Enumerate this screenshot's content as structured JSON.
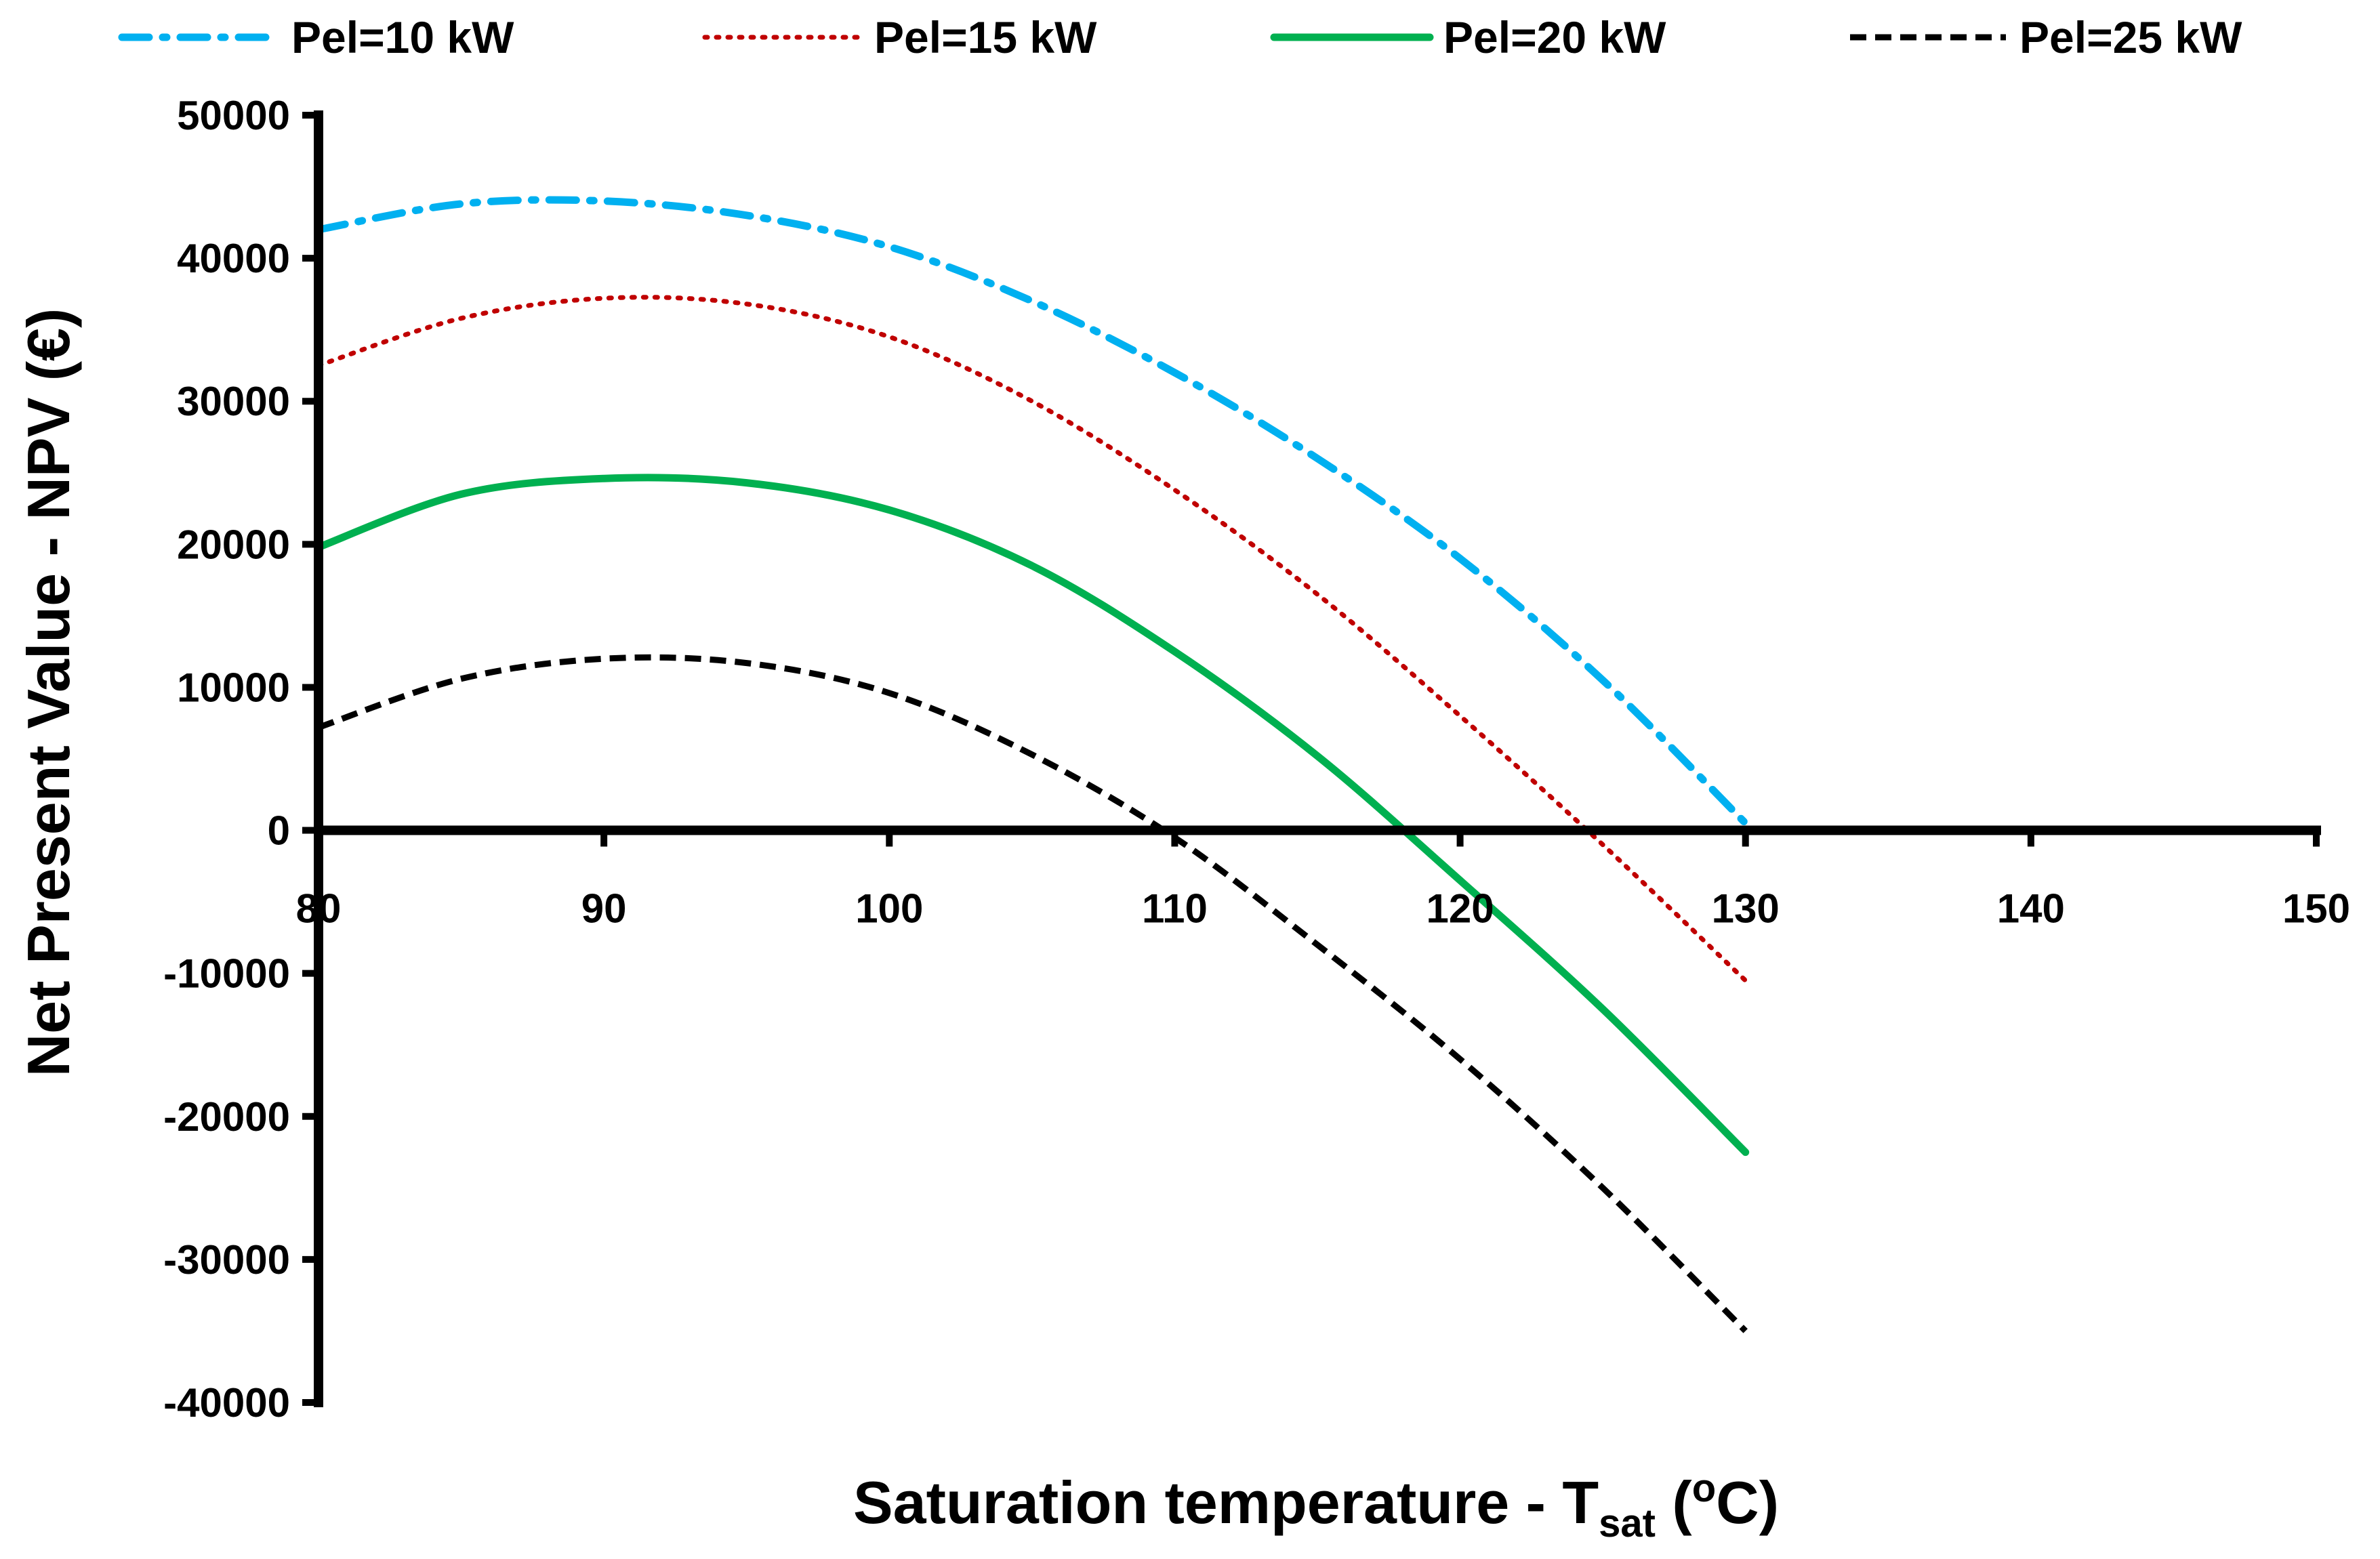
{
  "chart_data": {
    "type": "line",
    "xlabel": {
      "main": "Saturation temperature - T",
      "sub": "sat",
      "tail": " (",
      "sup": "o",
      "end": "C)"
    },
    "ylabel": "Net Present Value - NPV (€)",
    "xlim": [
      80,
      150
    ],
    "ylim": [
      -40000,
      50000
    ],
    "xticks": [
      80,
      90,
      100,
      110,
      120,
      130,
      140,
      150
    ],
    "yticks": [
      50000,
      40000,
      30000,
      20000,
      10000,
      0,
      -10000,
      -20000,
      -30000,
      -40000
    ],
    "xtick_labels": [
      "80",
      "90",
      "100",
      "110",
      "120",
      "130",
      "140",
      "150"
    ],
    "ytick_labels": [
      "50000",
      "40000",
      "30000",
      "20000",
      "10000",
      "0",
      "-10000",
      "-20000",
      "-30000",
      "-40000"
    ],
    "grid": false,
    "legend_position": "top",
    "x": [
      80,
      85,
      90,
      95,
      100,
      105,
      110,
      115,
      120,
      125,
      130
    ],
    "series": [
      {
        "name": "Pel=10 kW",
        "color": "#00b0f0",
        "dash": "dash-dot",
        "values": [
          42000,
          43800,
          44000,
          43000,
          40800,
          37000,
          32000,
          26000,
          19000,
          10500,
          500
        ]
      },
      {
        "name": "Pel=15 kW",
        "color": "#c00000",
        "dash": "dotted",
        "values": [
          32500,
          35800,
          37200,
          36800,
          34500,
          30000,
          23800,
          16500,
          8000,
          -1000,
          -10500
        ]
      },
      {
        "name": "Pel=20 kW",
        "color": "#00b050",
        "dash": "solid",
        "values": [
          19800,
          23500,
          24600,
          24300,
          22400,
          18500,
          12500,
          5200,
          -3500,
          -12500,
          -22500
        ]
      },
      {
        "name": "Pel=25 kW",
        "color": "#000000",
        "dash": "dashed",
        "values": [
          7200,
          10600,
          12000,
          11700,
          9600,
          5300,
          -500,
          -8000,
          -16000,
          -25000,
          -35000
        ]
      }
    ]
  }
}
